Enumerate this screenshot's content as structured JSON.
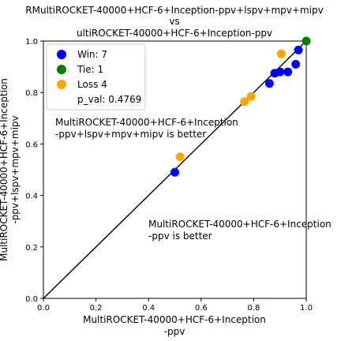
{
  "chart_data": {
    "type": "scatter",
    "title_lines": [
      "RMultiROCKET-40000+HCF-6+Inception-ppv+lspv+mpv+mipv",
      "vs",
      "ultiROCKET-40000+HCF-6+Inception-ppv"
    ],
    "xlabel_lines": [
      "MultiROCKET-40000+HCF-6+Inception",
      "-ppv"
    ],
    "ylabel_lines": [
      "MultiROCKET-40000+HCF-6+Inception",
      "-ppv+lspv+mpv+mipv"
    ],
    "xlim": [
      0.0,
      1.0
    ],
    "ylim": [
      0.0,
      1.0
    ],
    "xticks": [
      "0.0",
      "0.2",
      "0.4",
      "0.6",
      "0.8",
      "1.0"
    ],
    "yticks": [
      "0.0",
      "0.2",
      "0.4",
      "0.6",
      "0.8",
      "1.0"
    ],
    "grid": false,
    "legend_position": "top-left",
    "legend": {
      "win": "Win: 7",
      "tie": "Tie: 1",
      "loss": "Loss 4",
      "pval": "p_val: 0.4769"
    },
    "colors": {
      "win": "#0000ff",
      "tie": "#008000",
      "loss": "#ffa500",
      "diagonal": "#000000"
    },
    "annotations": {
      "upper_lines": [
        "MultiROCKET-40000+HCF-6+Inception",
        "-ppv+lspv+mpv+mipv is better"
      ],
      "lower_lines": [
        "MultiROCKET-40000+HCF-6+Inception",
        "-ppv is better"
      ]
    },
    "series": [
      {
        "name": "Win: 7",
        "color_key": "win",
        "points": [
          [
            0.5,
            0.49
          ],
          [
            0.86,
            0.835
          ],
          [
            0.88,
            0.875
          ],
          [
            0.9,
            0.88
          ],
          [
            0.93,
            0.88
          ],
          [
            0.96,
            0.91
          ],
          [
            0.97,
            0.965
          ]
        ]
      },
      {
        "name": "Tie: 1",
        "color_key": "tie",
        "points": [
          [
            1.0,
            1.0
          ]
        ]
      },
      {
        "name": "Loss 4",
        "color_key": "loss",
        "points": [
          [
            0.52,
            0.55
          ],
          [
            0.765,
            0.765
          ],
          [
            0.79,
            0.785
          ],
          [
            0.905,
            0.95
          ]
        ]
      }
    ]
  }
}
